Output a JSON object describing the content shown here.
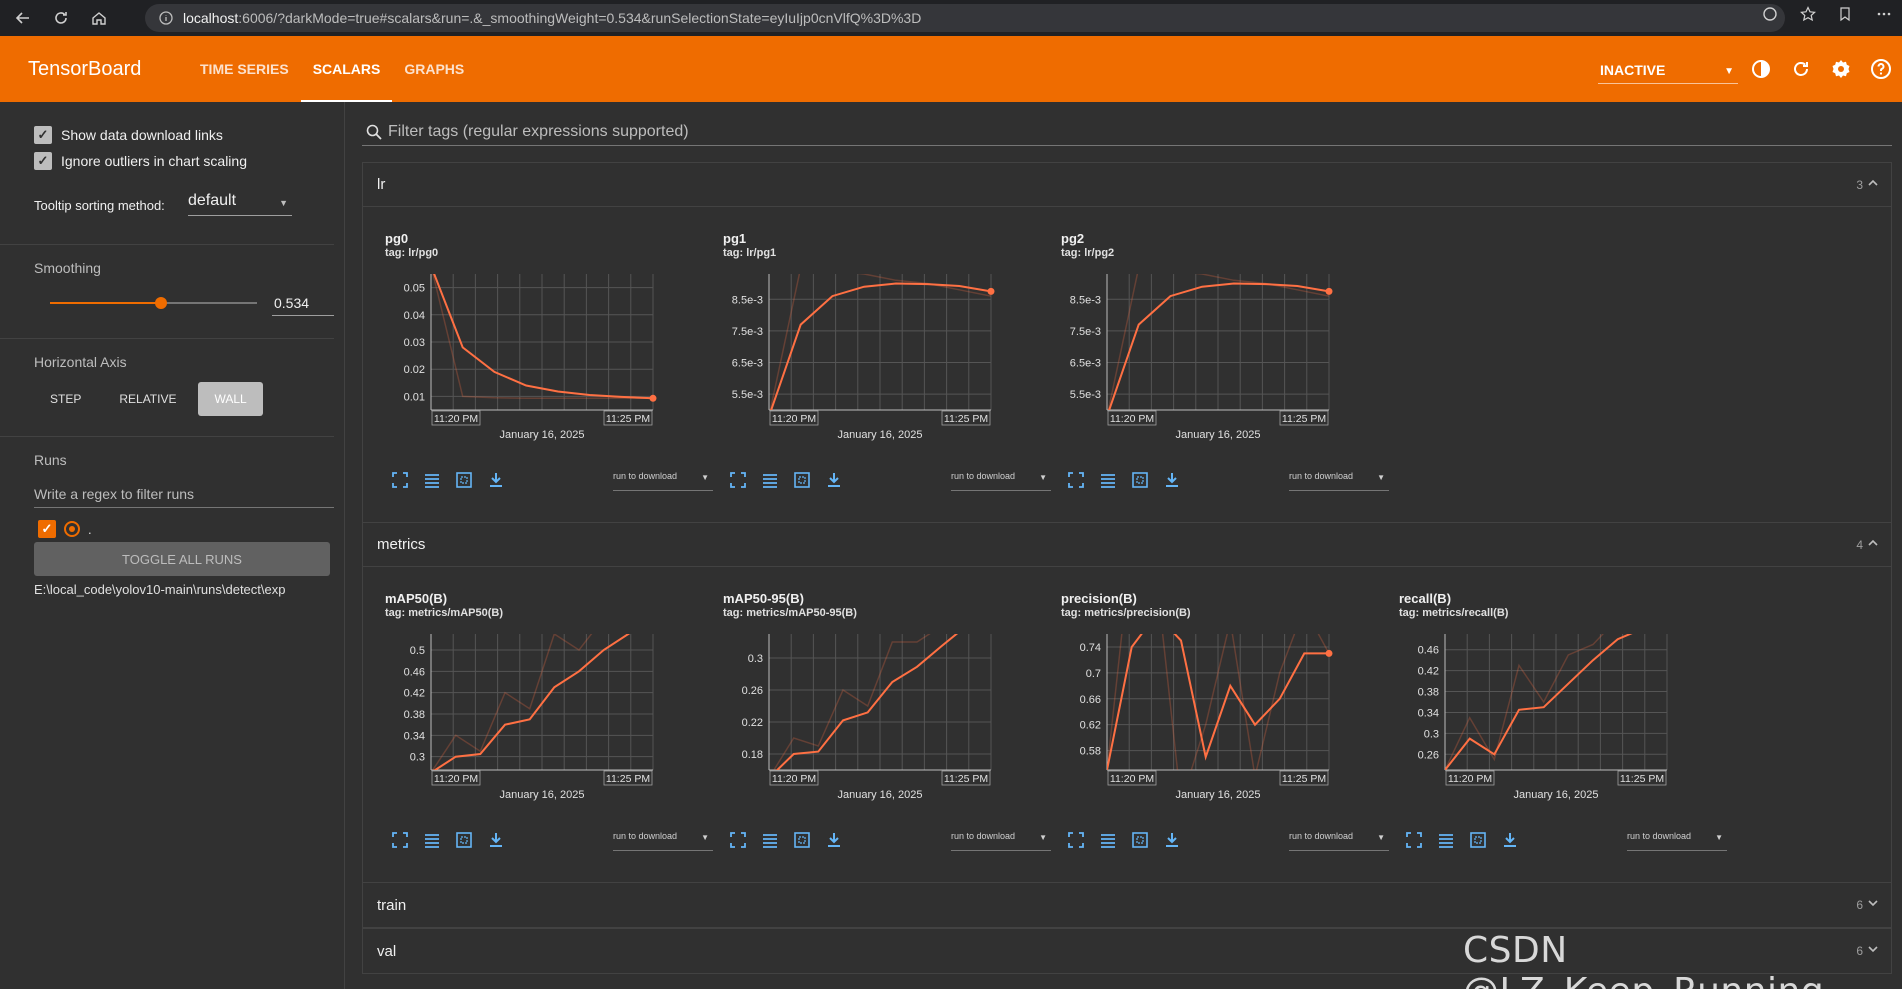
{
  "browser": {
    "url_host": "localhost",
    "url_rest": ":6006/?darkMode=true#scalars&run=.&_smoothingWeight=0.534&runSelectionState=eyIuIjp0cnVlfQ%3D%3D"
  },
  "header": {
    "logo": "TensorBoard",
    "tabs": [
      {
        "label": "TIME SERIES",
        "active": false
      },
      {
        "label": "SCALARS",
        "active": true
      },
      {
        "label": "GRAPHS",
        "active": false
      }
    ],
    "status": "INACTIVE",
    "accent": "#ef6c00"
  },
  "sidebar": {
    "show_download_links": "Show data download links",
    "ignore_outliers": "Ignore outliers in chart scaling",
    "tooltip_label": "Tooltip sorting method:",
    "tooltip_value": "default",
    "smoothing_label": "Smoothing",
    "smoothing_value": "0.534",
    "smoothing_fraction": 0.534,
    "horizontal_axis_label": "Horizontal Axis",
    "axis_options": [
      "STEP",
      "RELATIVE",
      "WALL"
    ],
    "axis_selected": "WALL",
    "runs_label": "Runs",
    "runs_filter_placeholder": "Write a regex to filter runs",
    "run_name": ".",
    "toggle_all": "TOGGLE ALL RUNS",
    "run_path": "E:\\local_code\\yolov10-main\\runs\\detect\\exp"
  },
  "main": {
    "filter_placeholder": "Filter tags (regular expressions supported)",
    "groups": [
      {
        "name": "lr",
        "count": "3",
        "expanded": true
      },
      {
        "name": "metrics",
        "count": "4",
        "expanded": true
      },
      {
        "name": "train",
        "count": "6",
        "expanded": false
      },
      {
        "name": "val",
        "count": "6",
        "expanded": false
      }
    ],
    "card_download_label": "run to download"
  },
  "chart_data": [
    {
      "type": "line",
      "title": "pg0",
      "tag": "tag: lr/pg0",
      "xlabel": "January 16, 2025",
      "x_ticks": [
        "11:20 PM",
        "11:25 PM"
      ],
      "y_ticks": [
        "0.01",
        "0.02",
        "0.03",
        "0.04",
        "0.05"
      ],
      "ylim": [
        0.005,
        0.055
      ],
      "x": [
        0,
        1,
        2,
        3,
        4,
        5,
        6,
        7
      ],
      "series": [
        {
          "values": [
            0.058,
            0.028,
            0.019,
            0.014,
            0.0118,
            0.0105,
            0.0098,
            0.0093
          ]
        }
      ],
      "raw": [
        0.058,
        0.01,
        0.0095,
        0.0093,
        0.0093,
        0.0093,
        0.0093,
        0.0093
      ],
      "color": "#ff7043"
    },
    {
      "type": "line",
      "title": "pg1",
      "tag": "tag: lr/pg1",
      "xlabel": "January 16, 2025",
      "x_ticks": [
        "11:20 PM",
        "11:25 PM"
      ],
      "y_ticks": [
        "5.5e-3",
        "6.5e-3",
        "7.5e-3",
        "8.5e-3"
      ],
      "ylim": [
        0.005,
        0.0093
      ],
      "x": [
        0,
        1,
        2,
        3,
        4,
        5,
        6,
        7
      ],
      "series": [
        {
          "values": [
            0.0048,
            0.0077,
            0.0086,
            0.0089,
            0.009,
            0.00898,
            0.00892,
            0.00875
          ]
        }
      ],
      "raw": [
        0.0048,
        0.0095,
        0.0094,
        0.0093,
        0.0091,
        0.009,
        0.0088,
        0.0086
      ],
      "color": "#ff7043"
    },
    {
      "type": "line",
      "title": "pg2",
      "tag": "tag: lr/pg2",
      "xlabel": "January 16, 2025",
      "x_ticks": [
        "11:20 PM",
        "11:25 PM"
      ],
      "y_ticks": [
        "5.5e-3",
        "6.5e-3",
        "7.5e-3",
        "8.5e-3"
      ],
      "ylim": [
        0.005,
        0.0093
      ],
      "x": [
        0,
        1,
        2,
        3,
        4,
        5,
        6,
        7
      ],
      "series": [
        {
          "values": [
            0.0048,
            0.0077,
            0.0086,
            0.0089,
            0.009,
            0.00898,
            0.00892,
            0.00875
          ]
        }
      ],
      "raw": [
        0.0048,
        0.0095,
        0.0094,
        0.0093,
        0.0091,
        0.009,
        0.0088,
        0.0086
      ],
      "color": "#ff7043"
    },
    {
      "type": "line",
      "title": "mAP50(B)",
      "tag": "tag: metrics/mAP50(B)",
      "xlabel": "January 16, 2025",
      "x_ticks": [
        "11:20 PM",
        "11:25 PM"
      ],
      "y_ticks": [
        "0.3",
        "0.34",
        "0.38",
        "0.42",
        "0.46",
        "0.5"
      ],
      "ylim": [
        0.275,
        0.53
      ],
      "x": [
        0,
        1,
        2,
        3,
        4,
        5,
        6,
        7,
        8,
        9
      ],
      "series": [
        {
          "values": [
            0.27,
            0.3,
            0.305,
            0.36,
            0.37,
            0.43,
            0.46,
            0.5,
            0.53,
            0.56
          ]
        }
      ],
      "raw": [
        0.27,
        0.34,
        0.31,
        0.42,
        0.39,
        0.53,
        0.5,
        0.56,
        0.57,
        0.6
      ],
      "color": "#ff7043"
    },
    {
      "type": "line",
      "title": "mAP50-95(B)",
      "tag": "tag: metrics/mAP50-95(B)",
      "xlabel": "January 16, 2025",
      "x_ticks": [
        "11:20 PM",
        "11:25 PM"
      ],
      "y_ticks": [
        "0.18",
        "0.22",
        "0.26",
        "0.3"
      ],
      "ylim": [
        0.16,
        0.33
      ],
      "x": [
        0,
        1,
        2,
        3,
        4,
        5,
        6,
        7,
        8,
        9
      ],
      "series": [
        {
          "values": [
            0.15,
            0.18,
            0.183,
            0.222,
            0.232,
            0.27,
            0.289,
            0.315,
            0.34,
            0.36
          ]
        }
      ],
      "raw": [
        0.15,
        0.2,
        0.19,
        0.26,
        0.24,
        0.32,
        0.32,
        0.34,
        0.36,
        0.37
      ],
      "color": "#ff7043"
    },
    {
      "type": "line",
      "title": "precision(B)",
      "tag": "tag: metrics/precision(B)",
      "xlabel": "January 16, 2025",
      "x_ticks": [
        "11:20 PM",
        "11:25 PM"
      ],
      "y_ticks": [
        "0.58",
        "0.62",
        "0.66",
        "0.7",
        "0.74"
      ],
      "ylim": [
        0.55,
        0.76
      ],
      "x": [
        0,
        1,
        2,
        3,
        4,
        5,
        6,
        7,
        8,
        9
      ],
      "series": [
        {
          "values": [
            0.55,
            0.74,
            0.79,
            0.75,
            0.57,
            0.68,
            0.62,
            0.66,
            0.73,
            0.73
          ]
        }
      ],
      "raw": [
        0.55,
        0.9,
        0.85,
        0.5,
        0.62,
        0.78,
        0.54,
        0.7,
        0.8,
        0.73
      ],
      "color": "#ff7043"
    },
    {
      "type": "line",
      "title": "recall(B)",
      "tag": "tag: metrics/recall(B)",
      "xlabel": "January 16, 2025",
      "x_ticks": [
        "11:20 PM",
        "11:25 PM"
      ],
      "y_ticks": [
        "0.26",
        "0.3",
        "0.34",
        "0.38",
        "0.42",
        "0.46"
      ],
      "ylim": [
        0.23,
        0.49
      ],
      "x": [
        0,
        1,
        2,
        3,
        4,
        5,
        6,
        7,
        8,
        9
      ],
      "series": [
        {
          "values": [
            0.23,
            0.29,
            0.26,
            0.345,
            0.35,
            0.395,
            0.44,
            0.48,
            0.5,
            0.52
          ]
        }
      ],
      "raw": [
        0.23,
        0.33,
        0.25,
        0.43,
        0.36,
        0.45,
        0.47,
        0.52,
        0.53,
        0.55
      ],
      "color": "#ff7043"
    }
  ],
  "watermark": "CSDN @LZ_Keep_Running"
}
